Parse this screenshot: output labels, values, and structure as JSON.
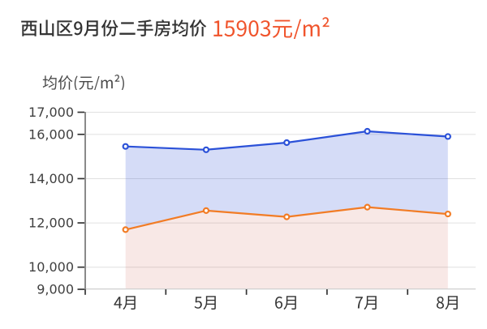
{
  "page": {
    "background": "#ffffff"
  },
  "header": {
    "title": "西山区9月份二手房均价",
    "value": "15903元/m²",
    "title_color": "#333333",
    "value_color": "#f0542c"
  },
  "chart_data": {
    "type": "area",
    "title": "西山区9月份二手房均价 15903元/m²",
    "ylabel": "均价(元/m²)",
    "xlabel": "",
    "categories": [
      "4月",
      "5月",
      "6月",
      "7月",
      "8月"
    ],
    "series": [
      {
        "name": "blue",
        "color": "#2b51d8",
        "fill": "rgba(43,81,216,0.20)",
        "values": [
          15455,
          15305,
          15627,
          16140,
          15903
        ]
      },
      {
        "name": "orange",
        "color": "#f27c25",
        "fill": "rgba(195,62,48,0.12)",
        "values": [
          11695,
          12555,
          12273,
          12713,
          12402
        ]
      }
    ],
    "ylim": [
      9000,
      17000
    ],
    "y_ticks": [
      {
        "value": 17000,
        "label": "17,000"
      },
      {
        "value": 16000,
        "label": "16,000"
      },
      {
        "value": 14000,
        "label": "14,000"
      },
      {
        "value": 12000,
        "label": "12,000"
      },
      {
        "value": 10000,
        "label": "10,000"
      },
      {
        "value": 9000,
        "label": "9,000"
      }
    ],
    "grid": true,
    "legend": "none",
    "colors": {
      "grid_line": "#e0e0e0",
      "x_axis_line": "#cfcfcf",
      "y_axis_line": "#8a8a8a",
      "tick": "#333333",
      "y_label": "#404040",
      "x_label": "#333333",
      "y_title": "#4a4a4a"
    }
  }
}
